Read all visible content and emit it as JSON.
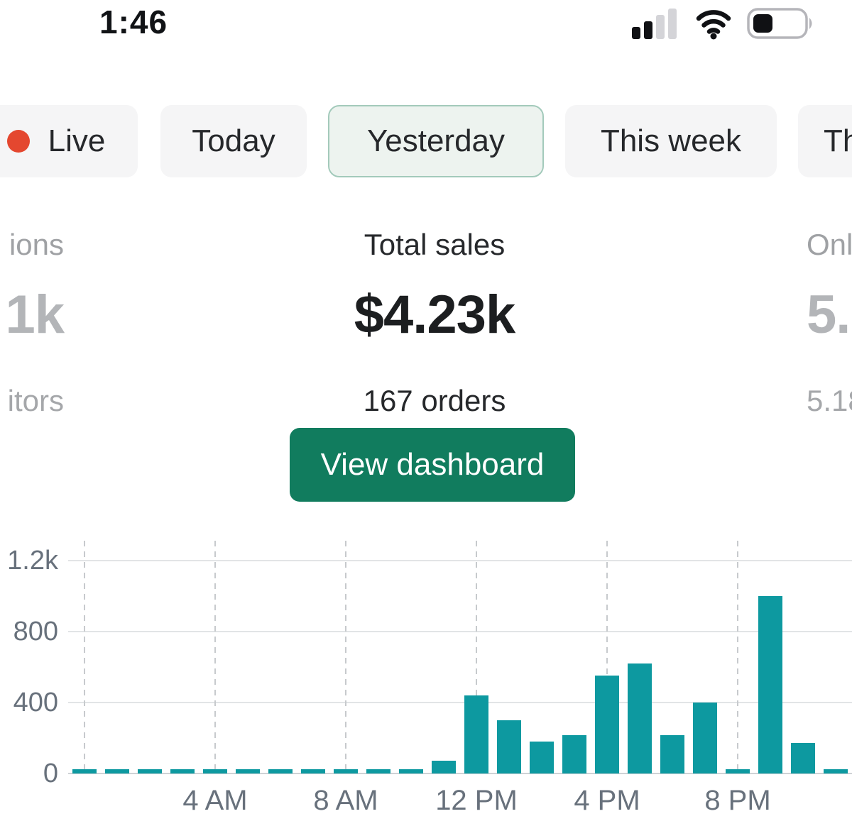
{
  "status_bar": {
    "time": "1:46",
    "icons": [
      "cellular-signal-icon",
      "wifi-icon",
      "battery-icon"
    ]
  },
  "tabs": [
    {
      "id": "live",
      "label": "Live",
      "has_dot": true,
      "selected": false,
      "clipped": false
    },
    {
      "id": "today",
      "label": "Today",
      "has_dot": false,
      "selected": false,
      "clipped": false
    },
    {
      "id": "yesterday",
      "label": "Yesterday",
      "has_dot": false,
      "selected": true,
      "clipped": false
    },
    {
      "id": "this-week",
      "label": "This week",
      "has_dot": false,
      "selected": false,
      "clipped": false
    },
    {
      "id": "this-month",
      "label": "Th",
      "has_dot": false,
      "selected": false,
      "clipped": true
    }
  ],
  "stats": {
    "left": {
      "label": "ions",
      "value": "1k",
      "sub": "itors"
    },
    "center": {
      "label": "Total sales",
      "value": "$4.23k",
      "sub": "167 orders"
    },
    "right": {
      "label": "Onl",
      "value": "5.",
      "sub": "5.18"
    }
  },
  "button": {
    "label": "View dashboard"
  },
  "colors": {
    "accent_green": "#117c5e",
    "selected_tab_border": "#a3cabb",
    "selected_tab_bg": "#edf3ef",
    "live_dot": "#e4472f",
    "bar_teal": "#0d99a0"
  },
  "chart_data": {
    "type": "bar",
    "title": "",
    "xlabel": "",
    "ylabel": "",
    "categories": [
      "12 AM",
      "1 AM",
      "2 AM",
      "3 AM",
      "4 AM",
      "5 AM",
      "6 AM",
      "7 AM",
      "8 AM",
      "9 AM",
      "10 AM",
      "11 AM",
      "12 PM",
      "1 PM",
      "2 PM",
      "3 PM",
      "4 PM",
      "5 PM",
      "6 PM",
      "7 PM",
      "8 PM",
      "9 PM",
      "10 PM",
      "11 PM"
    ],
    "values": [
      25,
      25,
      25,
      25,
      25,
      25,
      25,
      25,
      25,
      25,
      25,
      70,
      440,
      300,
      180,
      215,
      550,
      620,
      215,
      400,
      25,
      1000,
      170,
      25
    ],
    "ylim": [
      0,
      1200
    ],
    "y_ticks": [
      {
        "value": 0,
        "label": "0"
      },
      {
        "value": 400,
        "label": "400"
      },
      {
        "value": 800,
        "label": "800"
      },
      {
        "value": 1200,
        "label": "1.2k"
      }
    ],
    "x_ticks": [
      {
        "hour": 4,
        "label": "4 AM"
      },
      {
        "hour": 8,
        "label": "8 AM"
      },
      {
        "hour": 12,
        "label": "12 PM"
      },
      {
        "hour": 16,
        "label": "4 PM"
      },
      {
        "hour": 20,
        "label": "8 PM"
      }
    ],
    "dashed_hours": [
      0,
      4,
      8,
      12,
      16,
      20
    ],
    "grid": true,
    "legend_position": "none",
    "bar_color": "#0d99a0"
  }
}
